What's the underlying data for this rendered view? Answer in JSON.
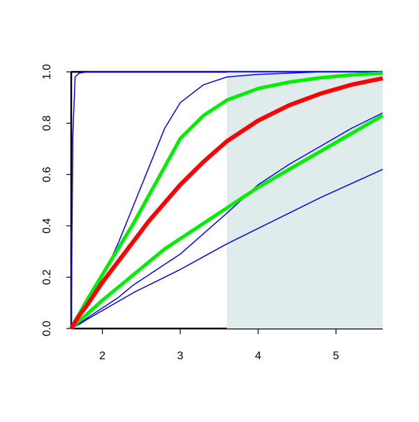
{
  "chart_data": {
    "type": "line",
    "x": [
      1.6,
      1.62,
      1.65,
      1.7,
      1.8,
      2.0,
      2.2,
      2.4,
      2.6,
      2.8,
      3.0,
      3.3,
      3.6,
      4.0,
      4.4,
      4.8,
      5.2,
      5.6
    ],
    "series": [
      {
        "color": "#0000ff",
        "linewidth": 1.5,
        "values": [
          0,
          0.75,
          0.98,
          0.995,
          1,
          1,
          1,
          1,
          1,
          1,
          1,
          1,
          1,
          1,
          1,
          1,
          1,
          1
        ]
      },
      {
        "color": "#0000ff",
        "linewidth": 1.5,
        "values": [
          0,
          0.005,
          0.015,
          0.04,
          0.1,
          0.2,
          0.33,
          0.48,
          0.63,
          0.78,
          0.88,
          0.95,
          0.98,
          0.99,
          0.995,
          1,
          1,
          1
        ]
      },
      {
        "color": "#0000ff",
        "linewidth": 1.5,
        "values": [
          0,
          0.004,
          0.01,
          0.02,
          0.04,
          0.08,
          0.12,
          0.17,
          0.21,
          0.25,
          0.29,
          0.37,
          0.45,
          0.56,
          0.64,
          0.71,
          0.78,
          0.84
        ]
      },
      {
        "color": "#0000ff",
        "linewidth": 1.5,
        "values": [
          0,
          0.003,
          0.008,
          0.016,
          0.035,
          0.07,
          0.105,
          0.14,
          0.17,
          0.2,
          0.23,
          0.28,
          0.33,
          0.39,
          0.45,
          0.51,
          0.565,
          0.62
        ]
      },
      {
        "color": "#00ee00",
        "linewidth": 5,
        "values": [
          0,
          0.01,
          0.03,
          0.055,
          0.11,
          0.21,
          0.31,
          0.41,
          0.52,
          0.63,
          0.74,
          0.83,
          0.89,
          0.935,
          0.96,
          0.977,
          0.988,
          0.995
        ]
      },
      {
        "color": "#00ee00",
        "linewidth": 5,
        "values": [
          0,
          0.005,
          0.015,
          0.03,
          0.055,
          0.11,
          0.16,
          0.21,
          0.26,
          0.31,
          0.35,
          0.41,
          0.47,
          0.55,
          0.62,
          0.69,
          0.76,
          0.83
        ]
      },
      {
        "color": "#ff0000",
        "linewidth": 6,
        "values": [
          0,
          0.01,
          0.025,
          0.05,
          0.09,
          0.18,
          0.26,
          0.34,
          0.42,
          0.49,
          0.56,
          0.65,
          0.73,
          0.81,
          0.87,
          0.915,
          0.95,
          0.975
        ]
      }
    ],
    "shaded_x": [
      3.6,
      5.6
    ],
    "shade_color": "#dfeceb",
    "xlim": [
      1.6,
      5.6
    ],
    "ylim": [
      0,
      1
    ],
    "xticks": [
      2,
      3,
      4,
      5
    ],
    "yticks": [
      {
        "value": 0,
        "label": "0.0"
      },
      {
        "value": 0.2,
        "label": "0.2"
      },
      {
        "value": 0.4,
        "label": "0.4"
      },
      {
        "value": 0.6,
        "label": "0.6"
      },
      {
        "value": 0.8,
        "label": "0.8"
      },
      {
        "value": 1,
        "label": "1.0"
      }
    ]
  }
}
